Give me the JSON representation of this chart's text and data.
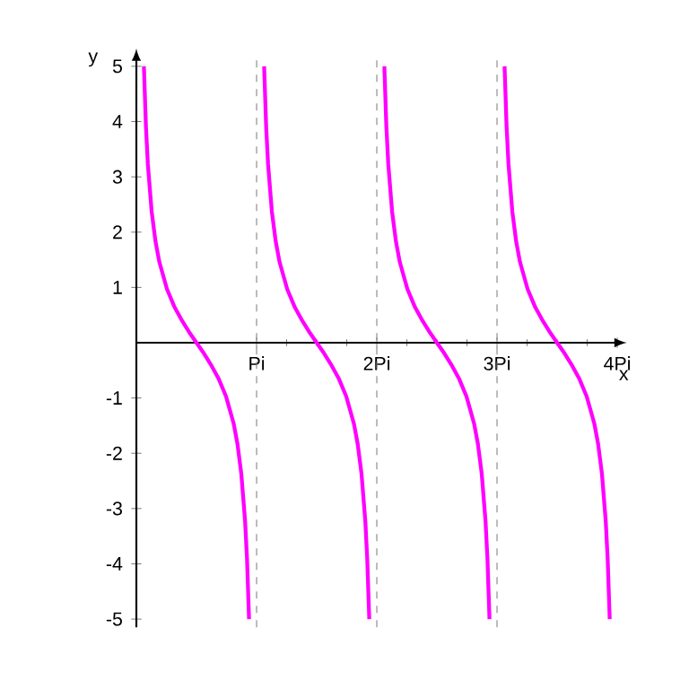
{
  "chart_data": {
    "type": "line",
    "xlabel": "x",
    "ylabel": "y",
    "xlim": [
      0,
      4.0
    ],
    "ylim": [
      -5.15,
      5.15
    ],
    "xticks": [
      {
        "value": 1,
        "label": "Pi"
      },
      {
        "value": 2,
        "label": "2Pi"
      },
      {
        "value": 3,
        "label": "3Pi"
      },
      {
        "value": 4,
        "label": "4Pi"
      }
    ],
    "yticks": [
      -5,
      -4,
      -3,
      -2,
      -1,
      1,
      2,
      3,
      4,
      5
    ],
    "grid": false,
    "marker": "none",
    "line_style": "solid",
    "ref_lines": [
      {
        "axis": "x",
        "value": 1,
        "color": "#808080",
        "line_style": "dashed"
      },
      {
        "axis": "x",
        "value": 2,
        "color": "#808080",
        "line_style": "dashed"
      },
      {
        "axis": "x",
        "value": 3,
        "color": "#808080",
        "line_style": "dashed"
      }
    ],
    "series": [
      {
        "color": "#ff00ff",
        "x": [
          0.0627,
          0.0796,
          0.0955,
          0.1273,
          0.1592,
          0.191,
          0.2546,
          0.3183,
          0.382,
          0.4456,
          0.5,
          0.5544,
          0.618,
          0.6817,
          0.7454,
          0.809,
          0.8408,
          0.8727,
          0.9045,
          0.9204,
          0.9373,
          1,
          1.0627,
          1.0796,
          1.0955,
          1.1273,
          1.1592,
          1.191,
          1.2546,
          1.3183,
          1.382,
          1.4456,
          1.5,
          1.5544,
          1.618,
          1.6817,
          1.7454,
          1.809,
          1.8408,
          1.8727,
          1.9045,
          1.9204,
          1.9373,
          2,
          2.0627,
          2.0796,
          2.0955,
          2.1273,
          2.1592,
          2.191,
          2.2546,
          2.3183,
          2.382,
          2.4456,
          2.5,
          2.5544,
          2.618,
          2.6817,
          2.7454,
          2.809,
          2.8408,
          2.8727,
          2.9045,
          2.9204,
          2.9373,
          3,
          3.0627,
          3.0796,
          3.0955,
          3.1273,
          3.1592,
          3.191,
          3.2546,
          3.3183,
          3.382,
          3.4456,
          3.5,
          3.5544,
          3.618,
          3.6817,
          3.7454,
          3.809,
          3.8408,
          3.8727,
          3.9045,
          3.9204,
          3.9373
        ],
        "values": [
          5,
          3.91,
          3.23,
          2.37,
          1.83,
          1.46,
          0.97,
          0.64,
          0.39,
          0.17,
          0,
          -0.17,
          -0.39,
          -0.64,
          -0.97,
          -1.46,
          -1.83,
          -2.37,
          -3.23,
          -3.91,
          -5,
          null,
          5,
          3.91,
          3.23,
          2.37,
          1.83,
          1.46,
          0.97,
          0.64,
          0.39,
          0.17,
          0,
          -0.17,
          -0.39,
          -0.64,
          -0.97,
          -1.46,
          -1.83,
          -2.37,
          -3.23,
          -3.91,
          -5,
          null,
          5,
          3.91,
          3.23,
          2.37,
          1.83,
          1.46,
          0.97,
          0.64,
          0.39,
          0.17,
          0,
          -0.17,
          -0.39,
          -0.64,
          -0.97,
          -1.46,
          -1.83,
          -2.37,
          -3.23,
          -3.91,
          -5,
          null,
          5,
          3.91,
          3.23,
          2.37,
          1.83,
          1.46,
          0.97,
          0.64,
          0.39,
          0.17,
          0,
          -0.17,
          -0.39,
          -0.64,
          -0.97,
          -1.46,
          -1.83,
          -2.37,
          -3.23,
          -3.91,
          -5
        ]
      }
    ]
  }
}
